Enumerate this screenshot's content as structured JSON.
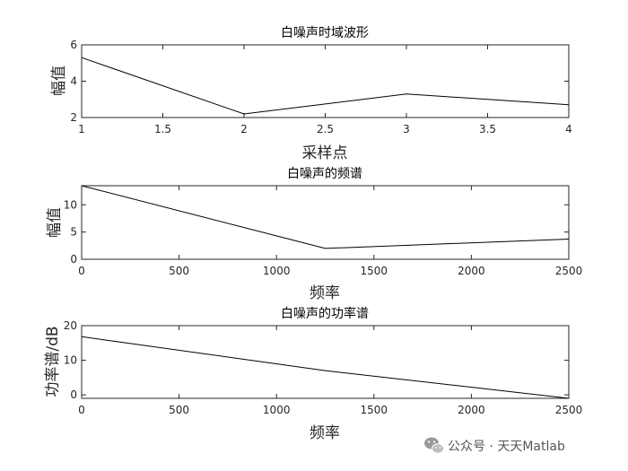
{
  "chart_data": [
    {
      "type": "line",
      "title": "白噪声时域波形",
      "xlabel": "采样点",
      "ylabel": "幅值",
      "x": [
        1,
        2,
        3,
        4
      ],
      "series": [
        {
          "values": [
            5.3,
            2.2,
            3.3,
            2.7
          ]
        }
      ],
      "xlim": [
        1,
        4
      ],
      "ylim": [
        2,
        6
      ],
      "xticks": [
        1,
        1.5,
        2,
        2.5,
        3,
        3.5,
        4
      ],
      "xtick_labels": [
        "1",
        "1.5",
        "2",
        "2.5",
        "3",
        "3.5",
        "4"
      ],
      "yticks": [
        2,
        4,
        6
      ],
      "ytick_labels": [
        "2",
        "4",
        "6"
      ],
      "grid": false,
      "line_color": "#000000"
    },
    {
      "type": "line",
      "title": "白噪声的频谱",
      "xlabel": "频率",
      "ylabel": "幅值",
      "x": [
        0,
        1250,
        2500
      ],
      "series": [
        {
          "values": [
            13.5,
            2.0,
            3.7
          ]
        }
      ],
      "xlim": [
        0,
        2500
      ],
      "ylim": [
        0,
        13.5
      ],
      "xticks": [
        0,
        500,
        1000,
        1500,
        2000,
        2500
      ],
      "xtick_labels": [
        "0",
        "500",
        "1000",
        "1500",
        "2000",
        "2500"
      ],
      "yticks": [
        0,
        5,
        10
      ],
      "ytick_labels": [
        "0",
        "5",
        "10"
      ],
      "grid": false,
      "line_color": "#000000"
    },
    {
      "type": "line",
      "title": "白噪声的功率谱",
      "xlabel": "频率",
      "ylabel": "功率谱/dB",
      "x": [
        0,
        1250,
        2500
      ],
      "series": [
        {
          "values": [
            16.8,
            7.0,
            -1.0
          ]
        }
      ],
      "xlim": [
        0,
        2500
      ],
      "ylim": [
        -1,
        20
      ],
      "xticks": [
        0,
        500,
        1000,
        1500,
        2000,
        2500
      ],
      "xtick_labels": [
        "0",
        "500",
        "1000",
        "1500",
        "2000",
        "2500"
      ],
      "yticks": [
        0,
        10,
        20
      ],
      "ytick_labels": [
        "0",
        "10",
        "20"
      ],
      "grid": false,
      "line_color": "#000000"
    }
  ],
  "watermark": {
    "icon": "wechat-icon",
    "text": "公众号 · 天天Matlab"
  }
}
